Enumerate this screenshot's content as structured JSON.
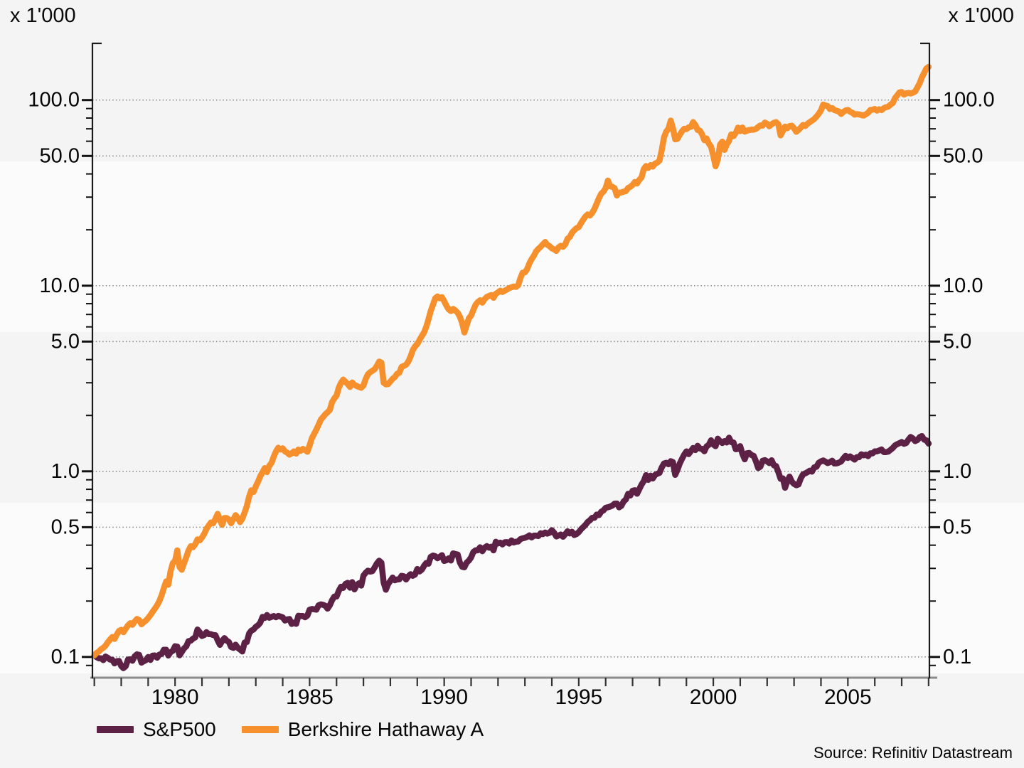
{
  "units": {
    "left_label": "x 1'000",
    "right_label": "x 1'000"
  },
  "source": "Source: Refinitiv Datastream",
  "legend": {
    "items": [
      {
        "label": "S&P500",
        "color": "#5C2144"
      },
      {
        "label": "Berkshire Hathaway A",
        "color": "#F5902C"
      }
    ]
  },
  "chart_data": {
    "type": "line",
    "y_scale": "log",
    "unit_multiplier": 1000,
    "unit_multiplier_label": "x 1'000",
    "grid": "horizontal dotted at major y ticks",
    "legend_position": "bottom-left",
    "xlim": [
      1976.93,
      2008.03
    ],
    "ylim": [
      0.078,
      202
    ],
    "x_axis": {
      "tick_years": [
        1977,
        1978,
        1979,
        1980,
        1981,
        1982,
        1983,
        1984,
        1985,
        1986,
        1987,
        1988,
        1989,
        1990,
        1991,
        1992,
        1993,
        1994,
        1995,
        1996,
        1997,
        1998,
        1999,
        2000,
        2001,
        2002,
        2003,
        2004,
        2005,
        2006,
        2007,
        2008
      ],
      "label_years": [
        1980,
        1985,
        1990,
        1995,
        2000,
        2005
      ],
      "labels": [
        "1980",
        "1985",
        "1990",
        "1995",
        "2000",
        "2005"
      ]
    },
    "y_axis": {
      "majors": [
        {
          "v": 100,
          "label": "100.0"
        },
        {
          "v": 50,
          "label": "50.0"
        },
        {
          "v": 10,
          "label": "10.0"
        },
        {
          "v": 5,
          "label": "5.0"
        },
        {
          "v": 1,
          "label": "1.0"
        },
        {
          "v": 0.5,
          "label": "0.5"
        },
        {
          "v": 0.1,
          "label": "0.1"
        }
      ],
      "minors": [
        90,
        80,
        70,
        60,
        40,
        30,
        20,
        9,
        8,
        7,
        6,
        4,
        3,
        2,
        0.9,
        0.8,
        0.7,
        0.6,
        0.4,
        0.3,
        0.2,
        0.09
      ]
    },
    "x_start": 1977.0,
    "x_step_years": 0.0833333,
    "series": [
      {
        "name": "S&P500",
        "color": "#5C2144",
        "values": [
          0.1021,
          0.0998,
          0.0984,
          0.0984,
          0.0961,
          0.1005,
          0.0989,
          0.0968,
          0.0965,
          0.0923,
          0.0948,
          0.0951,
          0.0893,
          0.087,
          0.0892,
          0.0968,
          0.0972,
          0.0955,
          0.1007,
          0.1033,
          0.1025,
          0.0932,
          0.0947,
          0.0961,
          0.0999,
          0.0963,
          0.1016,
          0.1018,
          0.0991,
          0.1029,
          0.1038,
          0.1093,
          0.1093,
          0.1018,
          0.1062,
          0.1079,
          0.1142,
          0.1137,
          0.1021,
          0.1063,
          0.1112,
          0.1142,
          0.1217,
          0.1224,
          0.1255,
          0.1275,
          0.1405,
          0.1358,
          0.1296,
          0.1313,
          0.136,
          0.1328,
          0.1326,
          0.1312,
          0.1309,
          0.1228,
          0.1162,
          0.1219,
          0.1263,
          0.1225,
          0.1204,
          0.1131,
          0.112,
          0.1164,
          0.1119,
          0.1096,
          0.1071,
          0.1195,
          0.1204,
          0.1337,
          0.1385,
          0.1406,
          0.1453,
          0.1481,
          0.153,
          0.1644,
          0.1624,
          0.1681,
          0.1626,
          0.1644,
          0.1661,
          0.1636,
          0.1664,
          0.1649,
          0.1634,
          0.1571,
          0.1592,
          0.16,
          0.1506,
          0.1532,
          0.1507,
          0.1667,
          0.1661,
          0.1661,
          0.1636,
          0.1672,
          0.1796,
          0.1812,
          0.1807,
          0.1798,
          0.1896,
          0.1919,
          0.1909,
          0.1886,
          0.1821,
          0.1898,
          0.2022,
          0.2113,
          0.2118,
          0.2269,
          0.2389,
          0.2355,
          0.2474,
          0.2508,
          0.2361,
          0.2529,
          0.2313,
          0.244,
          0.2492,
          0.2422,
          0.2741,
          0.2842,
          0.2917,
          0.2884,
          0.2901,
          0.304,
          0.3187,
          0.3298,
          0.3218,
          0.2518,
          0.2303,
          0.2471,
          0.2571,
          0.2678,
          0.2589,
          0.2613,
          0.2622,
          0.2735,
          0.272,
          0.2615,
          0.2719,
          0.279,
          0.2737,
          0.2777,
          0.2975,
          0.2889,
          0.2949,
          0.3096,
          0.3205,
          0.318,
          0.3461,
          0.3515,
          0.3492,
          0.3404,
          0.346,
          0.3534,
          0.3291,
          0.3319,
          0.3399,
          0.3308,
          0.3612,
          0.358,
          0.3562,
          0.3226,
          0.3061,
          0.304,
          0.3222,
          0.3302,
          0.3439,
          0.3671,
          0.3752,
          0.3753,
          0.3898,
          0.3712,
          0.3878,
          0.3954,
          0.3879,
          0.3925,
          0.3752,
          0.4171,
          0.4088,
          0.4127,
          0.4037,
          0.415,
          0.4154,
          0.4081,
          0.4242,
          0.414,
          0.4178,
          0.4187,
          0.4314,
          0.4357,
          0.4388,
          0.4434,
          0.4517,
          0.4402,
          0.4502,
          0.4505,
          0.4481,
          0.4636,
          0.4589,
          0.4678,
          0.4618,
          0.4665,
          0.4816,
          0.4671,
          0.4458,
          0.4509,
          0.4565,
          0.4443,
          0.4583,
          0.4755,
          0.4627,
          0.4724,
          0.4537,
          0.4593,
          0.4704,
          0.4874,
          0.5007,
          0.5147,
          0.5334,
          0.5448,
          0.5621,
          0.5619,
          0.5844,
          0.5815,
          0.6054,
          0.6159,
          0.636,
          0.6404,
          0.6455,
          0.6542,
          0.6691,
          0.6706,
          0.64,
          0.652,
          0.6873,
          0.7053,
          0.757,
          0.7407,
          0.7862,
          0.7908,
          0.7571,
          0.8013,
          0.8483,
          0.8851,
          0.9543,
          0.8995,
          0.9473,
          0.9146,
          0.9554,
          0.9704,
          0.9803,
          1.0493,
          1.1018,
          1.1118,
          1.0908,
          1.1338,
          1.1207,
          0.9573,
          1.017,
          1.0987,
          1.1636,
          1.2292,
          1.2796,
          1.2383,
          1.2864,
          1.3352,
          1.3018,
          1.3727,
          1.3287,
          1.3204,
          1.2827,
          1.3629,
          1.3889,
          1.4693,
          1.3945,
          1.3664,
          1.4986,
          1.4524,
          1.4206,
          1.4546,
          1.4308,
          1.5177,
          1.4365,
          1.4294,
          1.315,
          1.3203,
          1.366,
          1.2399,
          1.1603,
          1.2495,
          1.2558,
          1.2244,
          1.2112,
          1.1336,
          1.0409,
          1.0598,
          1.1395,
          1.1481,
          1.1302,
          1.1067,
          1.1474,
          1.0769,
          1.0671,
          0.9898,
          0.9116,
          0.9161,
          0.8153,
          0.8858,
          0.9363,
          0.8798,
          0.8557,
          0.8412,
          0.8492,
          0.9169,
          0.9636,
          0.9745,
          0.9903,
          1.008,
          0.996,
          1.0507,
          1.0582,
          1.1119,
          1.1311,
          1.1449,
          1.1262,
          1.1073,
          1.1207,
          1.1408,
          1.1017,
          1.1042,
          1.1146,
          1.1302,
          1.1738,
          1.2119,
          1.1813,
          1.2036,
          1.1806,
          1.1569,
          1.1915,
          1.1913,
          1.2342,
          1.2203,
          1.2288,
          1.207,
          1.2495,
          1.2483,
          1.2801,
          1.2807,
          1.2949,
          1.3106,
          1.2701,
          1.2702,
          1.2767,
          1.3038,
          1.3359,
          1.3779,
          1.4006,
          1.4183,
          1.4382,
          1.4068,
          1.4209,
          1.4824,
          1.5306,
          1.5034,
          1.4553,
          1.474,
          1.5268,
          1.5494,
          1.4811,
          1.4684,
          1.411
        ]
      },
      {
        "name": "Berkshire Hathaway A",
        "color": "#F5902C",
        "values": [
          0.102,
          0.105,
          0.107,
          0.11,
          0.112,
          0.115,
          0.12,
          0.124,
          0.128,
          0.125,
          0.132,
          0.138,
          0.14,
          0.136,
          0.142,
          0.148,
          0.152,
          0.149,
          0.155,
          0.16,
          0.158,
          0.15,
          0.154,
          0.157,
          0.162,
          0.168,
          0.175,
          0.182,
          0.19,
          0.2,
          0.215,
          0.235,
          0.255,
          0.245,
          0.29,
          0.32,
          0.33,
          0.375,
          0.305,
          0.295,
          0.32,
          0.345,
          0.375,
          0.395,
          0.39,
          0.405,
          0.43,
          0.425,
          0.44,
          0.46,
          0.49,
          0.51,
          0.53,
          0.525,
          0.555,
          0.59,
          0.545,
          0.515,
          0.56,
          0.56,
          0.55,
          0.525,
          0.552,
          0.58,
          0.56,
          0.532,
          0.555,
          0.6,
          0.65,
          0.73,
          0.79,
          0.775,
          0.83,
          0.88,
          0.94,
          0.99,
          1.04,
          0.99,
          1.07,
          1.11,
          1.2,
          1.28,
          1.34,
          1.31,
          1.33,
          1.28,
          1.26,
          1.23,
          1.25,
          1.28,
          1.245,
          1.31,
          1.29,
          1.32,
          1.3,
          1.275,
          1.38,
          1.51,
          1.59,
          1.68,
          1.78,
          1.9,
          1.96,
          2.03,
          2.08,
          2.14,
          2.36,
          2.47,
          2.56,
          2.82,
          3.0,
          3.12,
          3.03,
          2.95,
          2.85,
          3.01,
          2.92,
          2.88,
          2.85,
          2.82,
          2.9,
          3.15,
          3.33,
          3.42,
          3.48,
          3.55,
          3.7,
          3.9,
          3.85,
          3.0,
          2.94,
          2.95,
          3.05,
          3.15,
          3.22,
          3.35,
          3.4,
          3.65,
          3.7,
          3.75,
          3.9,
          4.15,
          4.5,
          4.7,
          4.85,
          5.1,
          5.35,
          5.6,
          6.0,
          6.6,
          7.3,
          7.9,
          8.55,
          8.75,
          8.55,
          8.675,
          8.25,
          7.8,
          7.45,
          7.3,
          7.5,
          7.35,
          7.15,
          6.8,
          6.3,
          5.6,
          6.1,
          6.675,
          6.9,
          7.4,
          7.9,
          8.15,
          8.35,
          8.1,
          8.45,
          8.7,
          8.8,
          8.9,
          8.6,
          9.05,
          9.2,
          9.4,
          9.25,
          9.4,
          9.55,
          9.7,
          9.8,
          9.9,
          9.85,
          10.05,
          11.0,
          11.75,
          11.8,
          12.3,
          13.2,
          13.9,
          14.5,
          15.3,
          15.8,
          16.2,
          16.7,
          17.2,
          16.6,
          16.325,
          15.9,
          15.7,
          15.4,
          16.1,
          16.4,
          16.2,
          16.7,
          17.9,
          18.3,
          19.3,
          19.9,
          20.4,
          20.7,
          21.7,
          22.7,
          23.6,
          24.2,
          23.9,
          24.7,
          25.9,
          27.7,
          29.6,
          31.3,
          32.1,
          33.6,
          36.8,
          34.3,
          34.1,
          33.5,
          30.6,
          31.7,
          31.8,
          32.1,
          32.3,
          33.6,
          34.1,
          34.9,
          36.2,
          35.5,
          37.2,
          38.3,
          42.5,
          44.1,
          43.1,
          44.6,
          43.8,
          45.5,
          46.0,
          47.2,
          53.7,
          62.9,
          67.6,
          70.1,
          77.5,
          70.5,
          61.4,
          61.8,
          64.9,
          67.8,
          70.0,
          69.8,
          71.3,
          71.8,
          76.1,
          73.3,
          69.0,
          68.5,
          65.4,
          60.8,
          62.1,
          58.3,
          56.1,
          50.1,
          44.0,
          47.8,
          57.6,
          59.7,
          53.9,
          57.6,
          60.2,
          65.3,
          63.9,
          66.5,
          71.0,
          68.0,
          71.1,
          67.6,
          68.4,
          68.9,
          69.3,
          69.2,
          69.9,
          71.6,
          73.0,
          72.8,
          75.6,
          74.5,
          72.2,
          74.0,
          75.5,
          76.0,
          74.0,
          64.5,
          68.0,
          72.0,
          70.5,
          72.4,
          72.75,
          70.5,
          67.5,
          69.0,
          71.0,
          73.5,
          72.5,
          74.5,
          76.0,
          77.5,
          79.0,
          81.5,
          84.25,
          88.0,
          94.5,
          93.5,
          92.8,
          89.5,
          90.5,
          88.3,
          87.5,
          86.8,
          84.1,
          86.4,
          87.9,
          88.5,
          86.5,
          85.5,
          83.5,
          84.0,
          83.7,
          83.0,
          82.5,
          83.8,
          85.4,
          88.5,
          88.62,
          89.5,
          87.8,
          89.2,
          88.3,
          90.4,
          91.6,
          92.1,
          94.4,
          96.3,
          102.4,
          106.0,
          109.99,
          110.5,
          107.0,
          108.7,
          109.3,
          108.6,
          109.5,
          111.2,
          117.0,
          123.0,
          132.5,
          140.0,
          148.0,
          151.0
        ]
      }
    ]
  }
}
